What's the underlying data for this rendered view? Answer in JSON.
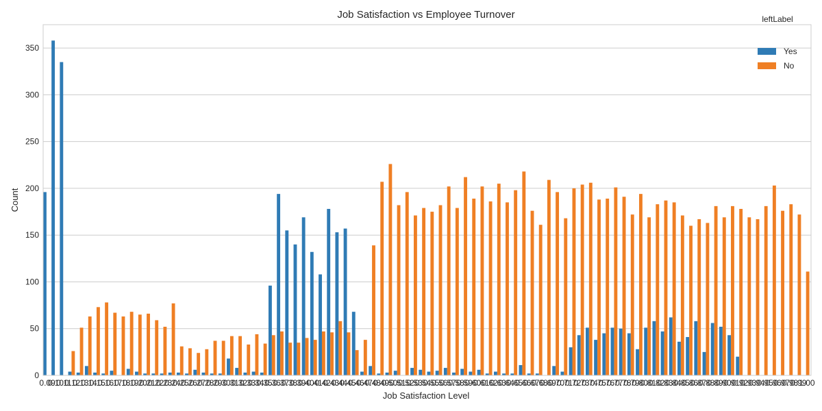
{
  "chart_data": {
    "type": "bar",
    "title": "Job Satisfaction vs Employee Turnover",
    "xlabel": "Job Satisfaction Level",
    "ylabel": "Count",
    "ylim": [
      0,
      375
    ],
    "yticks": [
      0,
      50,
      100,
      150,
      200,
      250,
      300,
      350
    ],
    "grid": true,
    "legend": {
      "title": "leftLabel",
      "position": "top-right"
    },
    "categories": [
      "0.09",
      "0.10",
      "0.11",
      "0.12",
      "0.13",
      "0.14",
      "0.15",
      "0.16",
      "0.17",
      "0.18",
      "0.19",
      "0.20",
      "0.21",
      "0.22",
      "0.23",
      "0.24",
      "0.25",
      "0.26",
      "0.27",
      "0.28",
      "0.29",
      "0.30",
      "0.31",
      "0.32",
      "0.33",
      "0.34",
      "0.35",
      "0.36",
      "0.37",
      "0.38",
      "0.39",
      "0.40",
      "0.41",
      "0.42",
      "0.43",
      "0.44",
      "0.45",
      "0.46",
      "0.47",
      "0.48",
      "0.49",
      "0.50",
      "0.51",
      "0.52",
      "0.53",
      "0.54",
      "0.55",
      "0.56",
      "0.57",
      "0.58",
      "0.59",
      "0.60",
      "0.61",
      "0.62",
      "0.63",
      "0.64",
      "0.65",
      "0.66",
      "0.67",
      "0.68",
      "0.69",
      "0.70",
      "0.71",
      "0.72",
      "0.73",
      "0.74",
      "0.75",
      "0.76",
      "0.77",
      "0.78",
      "0.79",
      "0.80",
      "0.81",
      "0.82",
      "0.83",
      "0.84",
      "0.85",
      "0.86",
      "0.87",
      "0.88",
      "0.89",
      "0.90",
      "0.91",
      "0.92",
      "0.93",
      "0.94",
      "0.95",
      "0.96",
      "0.97",
      "0.98",
      "0.99",
      "1.00"
    ],
    "series": [
      {
        "name": "Yes",
        "color": "#2f7bb5",
        "values": [
          196,
          358,
          335,
          4,
          3,
          10,
          3,
          2,
          5,
          0,
          7,
          4,
          2,
          2,
          2,
          3,
          3,
          2,
          6,
          3,
          2,
          2,
          18,
          8,
          3,
          4,
          3,
          96,
          194,
          155,
          140,
          169,
          132,
          108,
          178,
          153,
          157,
          68,
          4,
          10,
          2,
          3,
          5,
          0,
          8,
          6,
          4,
          5,
          8,
          3,
          7,
          4,
          6,
          2,
          4,
          2,
          2,
          11,
          2,
          2,
          0,
          10,
          4,
          30,
          43,
          51,
          38,
          45,
          51,
          50,
          45,
          28,
          51,
          58,
          47,
          62,
          36,
          41,
          58,
          25,
          56,
          52,
          43,
          20,
          0,
          0,
          0,
          0,
          0,
          0,
          0,
          0
        ]
      },
      {
        "name": "No",
        "color": "#ef7f24",
        "values": [
          0,
          0,
          0,
          26,
          51,
          63,
          73,
          78,
          67,
          63,
          68,
          65,
          66,
          59,
          52,
          77,
          31,
          29,
          24,
          28,
          37,
          37,
          42,
          42,
          33,
          44,
          34,
          43,
          47,
          35,
          35,
          40,
          38,
          47,
          46,
          58,
          46,
          27,
          38,
          139,
          207,
          226,
          182,
          196,
          171,
          179,
          175,
          182,
          202,
          179,
          212,
          189,
          202,
          186,
          205,
          185,
          198,
          218,
          176,
          161,
          209,
          196,
          168,
          200,
          204,
          206,
          188,
          189,
          201,
          191,
          172,
          194,
          169,
          183,
          187,
          185,
          171,
          160,
          167,
          163,
          181,
          169,
          181,
          178,
          169,
          167,
          181,
          203,
          176,
          183,
          172,
          111
        ]
      }
    ]
  }
}
